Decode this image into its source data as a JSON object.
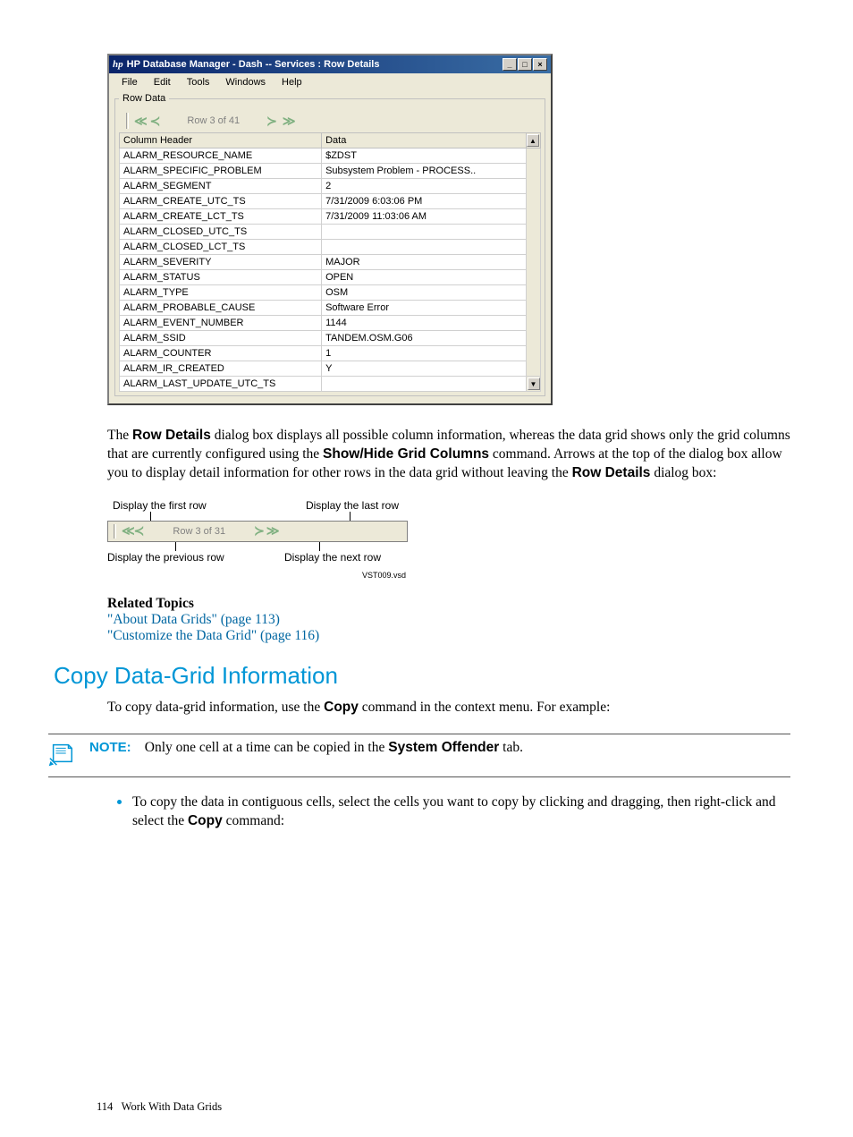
{
  "dialog": {
    "title": "HP Database Manager - Dash -- Services : Row Details",
    "hp_logo": "hp",
    "win_min": "_",
    "win_max": "□",
    "win_close": "×",
    "menu": {
      "file": "File",
      "edit": "Edit",
      "tools": "Tools",
      "windows": "Windows",
      "help": "Help"
    },
    "fieldset_label": "Row Data",
    "nav": {
      "first": "≪",
      "prev": "≺",
      "position": "Row 3 of 41",
      "next": "≻",
      "last": "≫"
    },
    "table": {
      "col_header": "Column Header",
      "col_data": "Data",
      "rows": [
        {
          "h": "ALARM_RESOURCE_NAME",
          "d": "$ZDST"
        },
        {
          "h": "ALARM_SPECIFIC_PROBLEM",
          "d": "Subsystem Problem - PROCESS.."
        },
        {
          "h": "ALARM_SEGMENT",
          "d": "2"
        },
        {
          "h": "ALARM_CREATE_UTC_TS",
          "d": "7/31/2009 6:03:06 PM"
        },
        {
          "h": "ALARM_CREATE_LCT_TS",
          "d": "7/31/2009 11:03:06 AM"
        },
        {
          "h": "ALARM_CLOSED_UTC_TS",
          "d": ""
        },
        {
          "h": "ALARM_CLOSED_LCT_TS",
          "d": ""
        },
        {
          "h": "ALARM_SEVERITY",
          "d": "MAJOR"
        },
        {
          "h": "ALARM_STATUS",
          "d": "OPEN"
        },
        {
          "h": "ALARM_TYPE",
          "d": "OSM"
        },
        {
          "h": "ALARM_PROBABLE_CAUSE",
          "d": "Software Error"
        },
        {
          "h": "ALARM_EVENT_NUMBER",
          "d": "1144"
        },
        {
          "h": "ALARM_SSID",
          "d": "TANDEM.OSM.G06"
        },
        {
          "h": "ALARM_COUNTER",
          "d": "1"
        },
        {
          "h": "ALARM_IR_CREATED",
          "d": "Y"
        },
        {
          "h": "ALARM_LAST_UPDATE_UTC_TS",
          "d": ""
        }
      ]
    },
    "scroll_up": "▲",
    "scroll_dn": "▼"
  },
  "paragraph1a": "The ",
  "paragraph1b": "Row Details",
  "paragraph1c": " dialog box displays all possible column information, whereas the data grid shows only the grid columns that are currently configured using the ",
  "paragraph1d": "Show/Hide Grid Columns",
  "paragraph1e": " command. Arrows at the top of the dialog box allow you to display detail information for other rows in the data grid without leaving the ",
  "paragraph1f": "Row Details",
  "paragraph1g": " dialog box:",
  "diagram": {
    "label_first": "Display the first row",
    "label_last": "Display the last row",
    "label_prev": "Display the previous row",
    "label_next": "Display the next row",
    "position": "Row 3 of 31",
    "first": "≪",
    "prev": "≺",
    "next": "≻",
    "last": "≫",
    "vst": "VST009.vsd"
  },
  "related_heading": "Related Topics",
  "related_link1": "\"About Data Grids\" (page 113)",
  "related_link2": "\"Customize the Data Grid\" (page 116)",
  "section_heading": "Copy Data-Grid Information",
  "paragraph2a": "To copy data-grid information, use the ",
  "paragraph2b": "Copy",
  "paragraph2c": " command in the context menu. For example:",
  "note_label": "NOTE:",
  "note_text_a": "Only one cell at a time can be copied in the ",
  "note_text_b": "System Offender",
  "note_text_c": " tab.",
  "bullet_a": "To copy the data in contiguous cells, select the cells you want to copy by clicking and dragging, then right-click and select the ",
  "bullet_b": "Copy",
  "bullet_c": " command:",
  "footer_page": "114",
  "footer_text": "Work With Data Grids",
  "colors": {
    "hp_blue": "#0096d6",
    "link_blue": "#0066a1",
    "arrow_green": "#7fb080"
  }
}
